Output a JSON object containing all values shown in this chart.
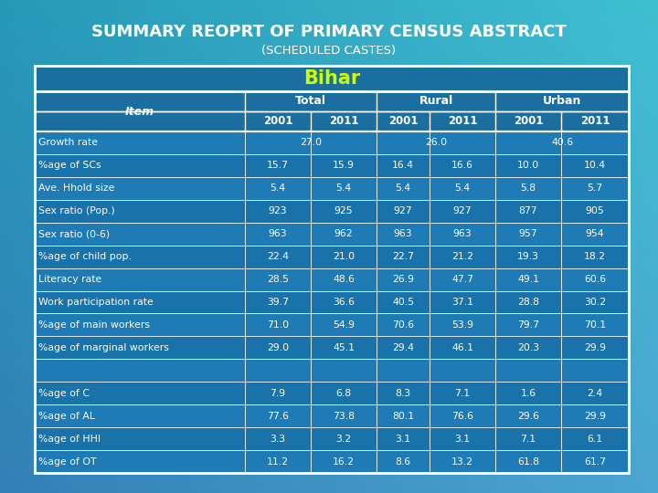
{
  "title1": "SUMMARY REOPRT OF PRIMARY CENSUS ABSTRACT",
  "title2": "(SCHEDULED CASTES)",
  "bihar_label": "Bihar",
  "text_color": "#ffffff",
  "bihar_text_color": "#ccff00",
  "rows": [
    {
      "item": "Growth rate",
      "t2001": "27.0",
      "t2011": "",
      "r2001": "26.0",
      "r2011": "",
      "u2001": "40.6",
      "u2011": "",
      "merged": true
    },
    {
      "item": "%age of SCs",
      "t2001": "15.7",
      "t2011": "15.9",
      "r2001": "16.4",
      "r2011": "16.6",
      "u2001": "10.0",
      "u2011": "10.4",
      "merged": false
    },
    {
      "item": "Ave. Hhold size",
      "t2001": "5.4",
      "t2011": "5.4",
      "r2001": "5.4",
      "r2011": "5.4",
      "u2001": "5.8",
      "u2011": "5.7",
      "merged": false
    },
    {
      "item": "Sex ratio (Pop.)",
      "t2001": "923",
      "t2011": "925",
      "r2001": "927",
      "r2011": "927",
      "u2001": "877",
      "u2011": "905",
      "merged": false
    },
    {
      "item": "Sex ratio (0-6)",
      "t2001": "963",
      "t2011": "962",
      "r2001": "963",
      "r2011": "963",
      "u2001": "957",
      "u2011": "954",
      "merged": false
    },
    {
      "item": "%age of child pop.",
      "t2001": "22.4",
      "t2011": "21.0",
      "r2001": "22.7",
      "r2011": "21.2",
      "u2001": "19.3",
      "u2011": "18.2",
      "merged": false
    },
    {
      "item": "Literacy rate",
      "t2001": "28.5",
      "t2011": "48.6",
      "r2001": "26.9",
      "r2011": "47.7",
      "u2001": "49.1",
      "u2011": "60.6",
      "merged": false
    },
    {
      "item": "Work participation rate",
      "t2001": "39.7",
      "t2011": "36.6",
      "r2001": "40.5",
      "r2011": "37.1",
      "u2001": "28.8",
      "u2011": "30.2",
      "merged": false
    },
    {
      "item": "%age of main workers",
      "t2001": "71.0",
      "t2011": "54.9",
      "r2001": "70.6",
      "r2011": "53.9",
      "u2001": "79.7",
      "u2011": "70.1",
      "merged": false
    },
    {
      "item": "%age of marginal workers",
      "t2001": "29.0",
      "t2011": "45.1",
      "r2001": "29.4",
      "r2011": "46.1",
      "u2001": "20.3",
      "u2011": "29.9",
      "merged": false
    },
    {
      "item": "",
      "t2001": "",
      "t2011": "",
      "r2001": "",
      "r2011": "",
      "u2001": "",
      "u2011": "",
      "merged": false,
      "separator": true
    },
    {
      "item": "%age of C",
      "t2001": "7.9",
      "t2011": "6.8",
      "r2001": "8.3",
      "r2011": "7.1",
      "u2001": "1.6",
      "u2011": "2.4",
      "merged": false
    },
    {
      "item": "%age of AL",
      "t2001": "77.6",
      "t2011": "73.8",
      "r2001": "80.1",
      "r2011": "76.6",
      "u2001": "29.6",
      "u2011": "29.9",
      "merged": false
    },
    {
      "item": "%age of HHI",
      "t2001": "3.3",
      "t2011": "3.2",
      "r2001": "3.1",
      "r2011": "3.1",
      "u2001": "7.1",
      "u2011": "6.1",
      "merged": false
    },
    {
      "item": "%age of OT",
      "t2001": "11.2",
      "t2011": "16.2",
      "r2001": "8.6",
      "r2011": "13.2",
      "u2001": "61.8",
      "u2011": "61.7",
      "merged": false
    }
  ]
}
